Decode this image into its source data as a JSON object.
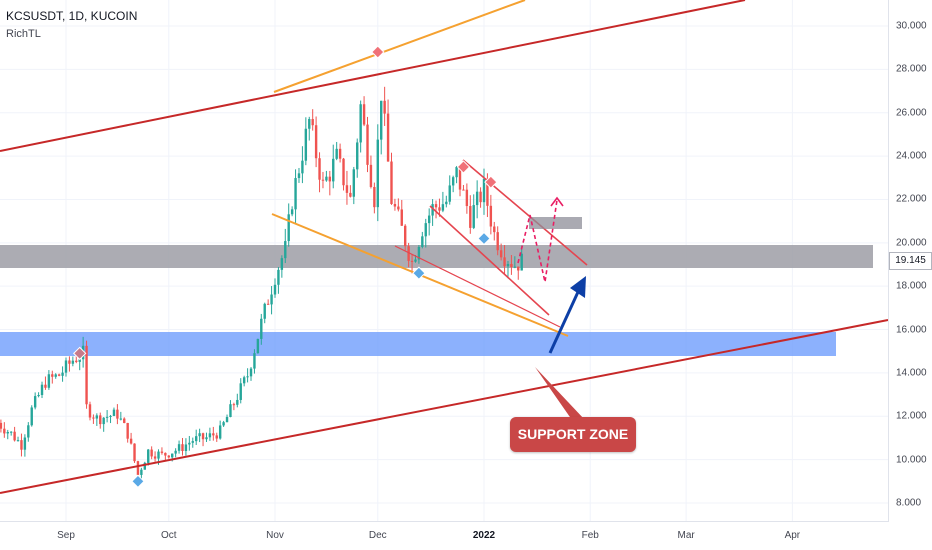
{
  "header": {
    "ticker": "KCSUSDT, 1D, KUCOIN",
    "indicator": "RichTL"
  },
  "colors": {
    "up": "#26a69a",
    "down": "#ef5350",
    "channel": "#c62828",
    "wedge": "#f5a130",
    "resistance_zone": "#9e9ea6",
    "support_zone": "#6f9dfc",
    "arrow": "#0d3fa6",
    "projection": "#e91e63",
    "label_bg": "#c94747"
  },
  "current_price": "19.145",
  "annotations": {
    "support_zone_label": "SUPPORT ZONE"
  },
  "chart_data": {
    "type": "candlestick",
    "y_ticks": [
      "30.000",
      "28.000",
      "26.000",
      "24.000",
      "22.000",
      "20.000",
      "18.000",
      "16.000",
      "14.000",
      "12.000",
      "10.000",
      "8.000"
    ],
    "x_ticks": [
      {
        "label": "Sep",
        "bold": false
      },
      {
        "label": "Oct",
        "bold": false
      },
      {
        "label": "Nov",
        "bold": false
      },
      {
        "label": "Dec",
        "bold": false
      },
      {
        "label": "2022",
        "bold": true
      },
      {
        "label": "Feb",
        "bold": false
      },
      {
        "label": "Mar",
        "bold": false
      },
      {
        "label": "Apr",
        "bold": false
      }
    ],
    "ylim": [
      7.5,
      30.5
    ],
    "price_path": [
      {
        "date": "2021-08-12",
        "close": 11.7
      },
      {
        "date": "2021-08-16",
        "close": 11.2
      },
      {
        "date": "2021-08-19",
        "close": 10.7
      },
      {
        "date": "2021-08-22",
        "close": 12.3
      },
      {
        "date": "2021-08-26",
        "close": 13.6
      },
      {
        "date": "2021-08-30",
        "close": 13.9
      },
      {
        "date": "2021-09-03",
        "close": 14.6
      },
      {
        "date": "2021-09-06",
        "close": 14.9
      },
      {
        "date": "2021-09-07",
        "close": 12.4
      },
      {
        "date": "2021-09-10",
        "close": 11.9
      },
      {
        "date": "2021-09-16",
        "close": 12.1
      },
      {
        "date": "2021-09-19",
        "close": 11.2
      },
      {
        "date": "2021-09-22",
        "close": 9.3
      },
      {
        "date": "2021-09-25",
        "close": 10.4
      },
      {
        "date": "2021-09-29",
        "close": 10.2
      },
      {
        "date": "2021-10-04",
        "close": 10.5
      },
      {
        "date": "2021-10-08",
        "close": 10.9
      },
      {
        "date": "2021-10-12",
        "close": 11.0
      },
      {
        "date": "2021-10-16",
        "close": 11.3
      },
      {
        "date": "2021-10-20",
        "close": 12.6
      },
      {
        "date": "2021-10-24",
        "close": 13.9
      },
      {
        "date": "2021-10-28",
        "close": 16.3
      },
      {
        "date": "2021-11-01",
        "close": 18.5
      },
      {
        "date": "2021-11-04",
        "close": 19.7
      },
      {
        "date": "2021-11-06",
        "close": 22.0
      },
      {
        "date": "2021-11-09",
        "close": 24.2
      },
      {
        "date": "2021-11-11",
        "close": 25.6
      },
      {
        "date": "2021-11-15",
        "close": 22.6
      },
      {
        "date": "2021-11-19",
        "close": 23.9
      },
      {
        "date": "2021-11-23",
        "close": 22.0
      },
      {
        "date": "2021-11-26",
        "close": 26.3
      },
      {
        "date": "2021-11-30",
        "close": 22.1
      },
      {
        "date": "2021-12-02",
        "close": 27.0
      },
      {
        "date": "2021-12-05",
        "close": 22.0
      },
      {
        "date": "2021-12-08",
        "close": 20.6
      },
      {
        "date": "2021-12-11",
        "close": 19.1
      },
      {
        "date": "2021-12-14",
        "close": 20.7
      },
      {
        "date": "2021-12-17",
        "close": 21.6
      },
      {
        "date": "2021-12-21",
        "close": 21.9
      },
      {
        "date": "2021-12-24",
        "close": 23.2
      },
      {
        "date": "2021-12-28",
        "close": 21.2
      },
      {
        "date": "2022-01-01",
        "close": 22.5
      },
      {
        "date": "2022-01-04",
        "close": 20.4
      },
      {
        "date": "2022-01-07",
        "close": 19.4
      },
      {
        "date": "2022-01-10",
        "close": 19.0
      },
      {
        "date": "2022-01-12",
        "close": 19.145
      }
    ]
  }
}
